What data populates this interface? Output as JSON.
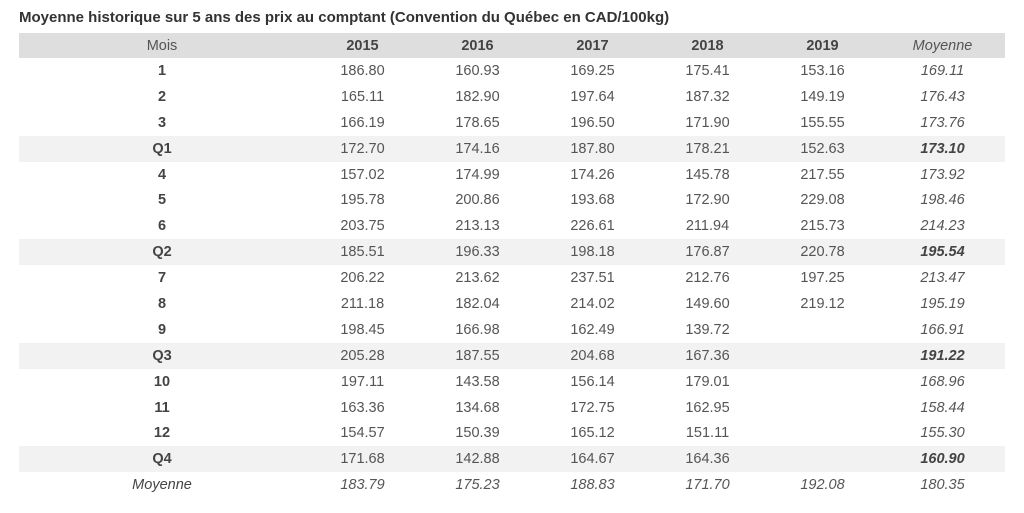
{
  "title": "Moyenne historique sur 5 ans des prix au comptant (Convention du Québec en CAD/100kg)",
  "table": {
    "headers": [
      "Mois",
      "2015",
      "2016",
      "2017",
      "2018",
      "2019",
      "Moyenne"
    ],
    "rows": [
      {
        "label": "1",
        "quarter": false,
        "values": [
          "186.80",
          "160.93",
          "169.25",
          "175.41",
          "153.16",
          "169.11"
        ]
      },
      {
        "label": "2",
        "quarter": false,
        "values": [
          "165.11",
          "182.90",
          "197.64",
          "187.32",
          "149.19",
          "176.43"
        ]
      },
      {
        "label": "3",
        "quarter": false,
        "values": [
          "166.19",
          "178.65",
          "196.50",
          "171.90",
          "155.55",
          "173.76"
        ]
      },
      {
        "label": "Q1",
        "quarter": true,
        "values": [
          "172.70",
          "174.16",
          "187.80",
          "178.21",
          "152.63",
          "173.10"
        ]
      },
      {
        "label": "4",
        "quarter": false,
        "values": [
          "157.02",
          "174.99",
          "174.26",
          "145.78",
          "217.55",
          "173.92"
        ]
      },
      {
        "label": "5",
        "quarter": false,
        "values": [
          "195.78",
          "200.86",
          "193.68",
          "172.90",
          "229.08",
          "198.46"
        ]
      },
      {
        "label": "6",
        "quarter": false,
        "values": [
          "203.75",
          "213.13",
          "226.61",
          "211.94",
          "215.73",
          "214.23"
        ]
      },
      {
        "label": "Q2",
        "quarter": true,
        "values": [
          "185.51",
          "196.33",
          "198.18",
          "176.87",
          "220.78",
          "195.54"
        ]
      },
      {
        "label": "7",
        "quarter": false,
        "values": [
          "206.22",
          "213.62",
          "237.51",
          "212.76",
          "197.25",
          "213.47"
        ]
      },
      {
        "label": "8",
        "quarter": false,
        "values": [
          "211.18",
          "182.04",
          "214.02",
          "149.60",
          "219.12",
          "195.19"
        ]
      },
      {
        "label": "9",
        "quarter": false,
        "values": [
          "198.45",
          "166.98",
          "162.49",
          "139.72",
          "",
          "166.91"
        ]
      },
      {
        "label": "Q3",
        "quarter": true,
        "values": [
          "205.28",
          "187.55",
          "204.68",
          "167.36",
          "",
          "191.22"
        ]
      },
      {
        "label": "10",
        "quarter": false,
        "values": [
          "197.11",
          "143.58",
          "156.14",
          "179.01",
          "",
          "168.96"
        ]
      },
      {
        "label": "11",
        "quarter": false,
        "values": [
          "163.36",
          "134.68",
          "172.75",
          "162.95",
          "",
          "158.44"
        ]
      },
      {
        "label": "12",
        "quarter": false,
        "values": [
          "154.57",
          "150.39",
          "165.12",
          "151.11",
          "",
          "155.30"
        ]
      },
      {
        "label": "Q4",
        "quarter": true,
        "values": [
          "171.68",
          "142.88",
          "164.67",
          "164.36",
          "",
          "160.90"
        ]
      }
    ],
    "footer": {
      "label": "Moyenne",
      "values": [
        "183.79",
        "175.23",
        "188.83",
        "171.70",
        "192.08",
        "180.35"
      ]
    }
  }
}
